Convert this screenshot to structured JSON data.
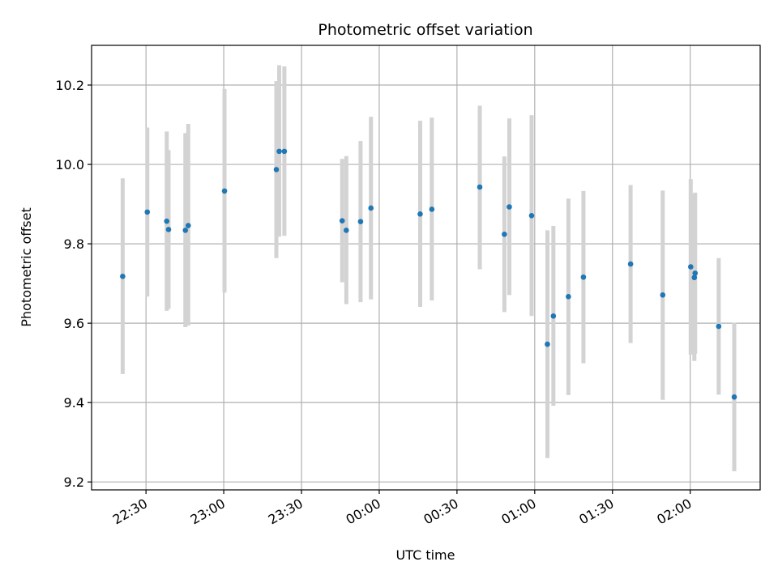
{
  "chart_data": {
    "type": "scatter",
    "title": "Photometric offset variation",
    "xlabel": "UTC time",
    "ylabel": "Photometric offset",
    "grid": true,
    "xlim": [
      -13,
      245
    ],
    "ylim": [
      9.18,
      10.3
    ],
    "x_ticks": [
      {
        "value": 8,
        "label": "22:30"
      },
      {
        "value": 38,
        "label": "23:00"
      },
      {
        "value": 68,
        "label": "23:30"
      },
      {
        "value": 98,
        "label": "00:00"
      },
      {
        "value": 128,
        "label": "00:30"
      },
      {
        "value": 158,
        "label": "01:00"
      },
      {
        "value": 188,
        "label": "01:30"
      },
      {
        "value": 218,
        "label": "02:00"
      }
    ],
    "y_ticks": [
      {
        "value": 9.2,
        "label": "9.2"
      },
      {
        "value": 9.4,
        "label": "9.4"
      },
      {
        "value": 9.6,
        "label": "9.6"
      },
      {
        "value": 9.8,
        "label": "9.8"
      },
      {
        "value": 10.0,
        "label": "10.0"
      },
      {
        "value": 10.2,
        "label": "10.2"
      }
    ],
    "colors": {
      "point": "#1f77b4",
      "errorbar": "#d3d3d3",
      "grid": "#b0b0b0"
    },
    "points": [
      {
        "x": -1,
        "y": 9.718,
        "err_low": 9.472,
        "err_high": 9.965
      },
      {
        "x": 8.5,
        "y": 9.88,
        "err_low": 9.667,
        "err_high": 10.093
      },
      {
        "x": 16,
        "y": 9.857,
        "err_low": 9.631,
        "err_high": 10.083
      },
      {
        "x": 16.7,
        "y": 9.836,
        "err_low": 9.636,
        "err_high": 10.036
      },
      {
        "x": 23.2,
        "y": 9.834,
        "err_low": 9.59,
        "err_high": 10.079
      },
      {
        "x": 24.3,
        "y": 9.846,
        "err_low": 9.594,
        "err_high": 10.102
      },
      {
        "x": 38.3,
        "y": 9.933,
        "err_low": 9.677,
        "err_high": 10.19
      },
      {
        "x": 58.3,
        "y": 9.987,
        "err_low": 9.764,
        "err_high": 10.21
      },
      {
        "x": 59.4,
        "y": 10.033,
        "err_low": 9.818,
        "err_high": 10.25
      },
      {
        "x": 61.4,
        "y": 10.033,
        "err_low": 9.82,
        "err_high": 10.247
      },
      {
        "x": 83.7,
        "y": 9.858,
        "err_low": 9.703,
        "err_high": 10.014
      },
      {
        "x": 85.3,
        "y": 9.834,
        "err_low": 9.648,
        "err_high": 10.021
      },
      {
        "x": 90.8,
        "y": 9.856,
        "err_low": 9.653,
        "err_high": 10.059
      },
      {
        "x": 94.8,
        "y": 9.89,
        "err_low": 9.66,
        "err_high": 10.12
      },
      {
        "x": 113.8,
        "y": 9.875,
        "err_low": 9.641,
        "err_high": 10.11
      },
      {
        "x": 118.3,
        "y": 9.887,
        "err_low": 9.657,
        "err_high": 10.118
      },
      {
        "x": 136.8,
        "y": 9.943,
        "err_low": 9.736,
        "err_high": 10.148
      },
      {
        "x": 146.3,
        "y": 9.824,
        "err_low": 9.628,
        "err_high": 10.02
      },
      {
        "x": 148.2,
        "y": 9.893,
        "err_low": 9.671,
        "err_high": 10.116
      },
      {
        "x": 156.8,
        "y": 9.871,
        "err_low": 9.618,
        "err_high": 10.124
      },
      {
        "x": 162.9,
        "y": 9.547,
        "err_low": 9.26,
        "err_high": 9.834
      },
      {
        "x": 165.2,
        "y": 9.618,
        "err_low": 9.392,
        "err_high": 9.845
      },
      {
        "x": 171,
        "y": 9.667,
        "err_low": 9.419,
        "err_high": 9.914
      },
      {
        "x": 176.8,
        "y": 9.716,
        "err_low": 9.499,
        "err_high": 9.933
      },
      {
        "x": 195,
        "y": 9.749,
        "err_low": 9.55,
        "err_high": 9.948
      },
      {
        "x": 207.4,
        "y": 9.671,
        "err_low": 9.407,
        "err_high": 9.934
      },
      {
        "x": 218.2,
        "y": 9.742,
        "err_low": 9.521,
        "err_high": 9.963
      },
      {
        "x": 219.6,
        "y": 9.715,
        "err_low": 9.505,
        "err_high": 9.925
      },
      {
        "x": 219.9,
        "y": 9.726,
        "err_low": 9.523,
        "err_high": 9.929
      },
      {
        "x": 229,
        "y": 9.592,
        "err_low": 9.42,
        "err_high": 9.764
      },
      {
        "x": 235,
        "y": 9.414,
        "err_low": 9.227,
        "err_high": 9.601
      }
    ]
  }
}
